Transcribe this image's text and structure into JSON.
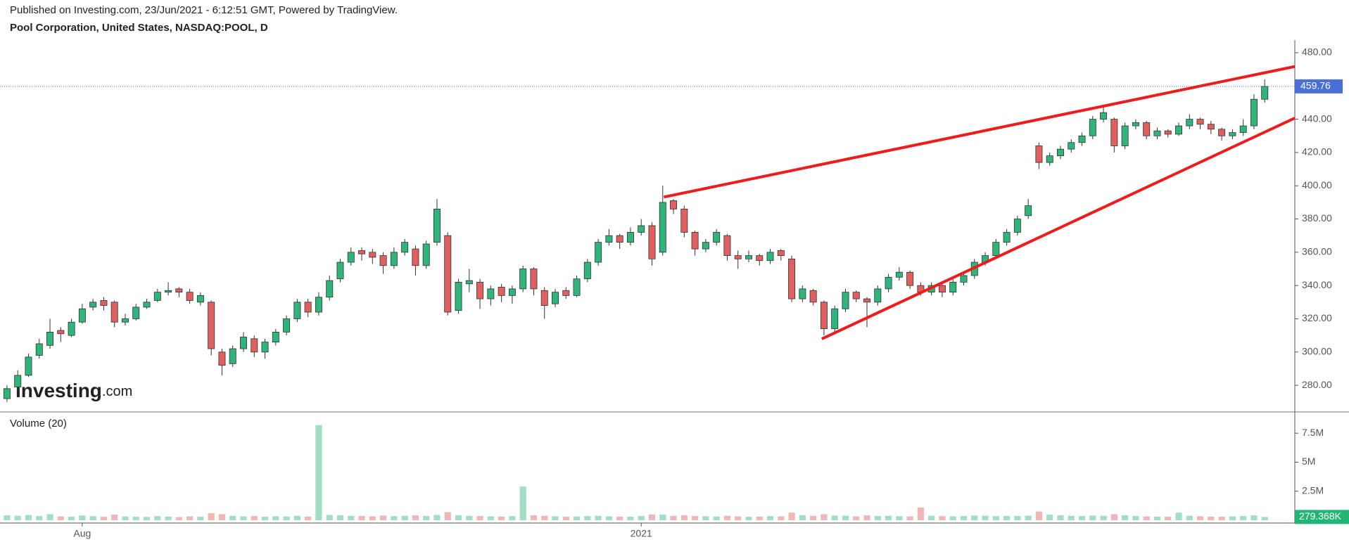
{
  "chart_data": {
    "type": "candlestick",
    "header": "Published on Investing.com, 23/Jun/2021 - 6:12:51 GMT, Powered by TradingView.",
    "title": "Pool Corporation, United States, NASDAQ:POOL, D",
    "volume_title": "Volume (20)",
    "logo": "Investing",
    "logo_suffix": ".com",
    "last_volume_label": "279.368K",
    "xlim": [
      -0.65,
      119.8
    ],
    "xticks": [
      {
        "value": 7,
        "label": "Aug"
      },
      {
        "value": 59,
        "label": "2021"
      }
    ],
    "ylim": [
      264.4,
      487.6
    ],
    "yticks": [
      {
        "value": 280,
        "label": "280.00"
      },
      {
        "value": 300,
        "label": "300.00"
      },
      {
        "value": 320,
        "label": "320.00"
      },
      {
        "value": 340,
        "label": "340.00"
      },
      {
        "value": 360,
        "label": "360.00"
      },
      {
        "value": 380,
        "label": "380.00"
      },
      {
        "value": 400,
        "label": "400.00"
      },
      {
        "value": 420,
        "label": "420.00"
      },
      {
        "value": 440,
        "label": "440.00"
      },
      {
        "value": 460,
        "label": "460.00"
      },
      {
        "value": 480,
        "label": "480.00"
      }
    ],
    "y2lim": [
      0,
      9270000
    ],
    "y2ticks": [
      {
        "value": 2500000,
        "label": "2.5M"
      },
      {
        "value": 5000000,
        "label": "5M"
      },
      {
        "value": 7500000,
        "label": "7.5M"
      }
    ],
    "up_color": "#2fb57a",
    "down_color": "#e06060",
    "trend_color": "#ee1c1c",
    "trend_lines": [
      {
        "x": [
          61.1,
          119.8
        ],
        "y": [
          393.2,
          471.7
        ]
      },
      {
        "x": [
          75.8,
          119.8
        ],
        "y": [
          307.9,
          440.7
        ]
      }
    ],
    "candles": [
      [
        272,
        280,
        270,
        278
      ],
      [
        279,
        289,
        277,
        286
      ],
      [
        286,
        299,
        285,
        297
      ],
      [
        298,
        308,
        296,
        305
      ],
      [
        304,
        320,
        302,
        312
      ],
      [
        313,
        315,
        306,
        311
      ],
      [
        310,
        320,
        309,
        318
      ],
      [
        318,
        329,
        317,
        326
      ],
      [
        327,
        332,
        325,
        330
      ],
      [
        331,
        333,
        325,
        328
      ],
      [
        330,
        331,
        315,
        318
      ],
      [
        318,
        323,
        316,
        320
      ],
      [
        320,
        329,
        319,
        327
      ],
      [
        327,
        332,
        326,
        330
      ],
      [
        331,
        338,
        330,
        336
      ],
      [
        336,
        342,
        334,
        337
      ],
      [
        338,
        339,
        333,
        336
      ],
      [
        336,
        338,
        329,
        331
      ],
      [
        330,
        336,
        328,
        334
      ],
      [
        330,
        331,
        298,
        302
      ],
      [
        300,
        302,
        286,
        292
      ],
      [
        293,
        304,
        291,
        302
      ],
      [
        302,
        312,
        300,
        309
      ],
      [
        308,
        310,
        297,
        300
      ],
      [
        300,
        308,
        296,
        306
      ],
      [
        306,
        314,
        304,
        312
      ],
      [
        312,
        322,
        310,
        320
      ],
      [
        320,
        332,
        318,
        330
      ],
      [
        330,
        332,
        321,
        324
      ],
      [
        324,
        336,
        322,
        333
      ],
      [
        333,
        346,
        331,
        343
      ],
      [
        344,
        356,
        342,
        354
      ],
      [
        354,
        363,
        352,
        360
      ],
      [
        361,
        363,
        355,
        359
      ],
      [
        360,
        362,
        353,
        357
      ],
      [
        358,
        360,
        347,
        352
      ],
      [
        352,
        363,
        350,
        360
      ],
      [
        360,
        368,
        358,
        366
      ],
      [
        362,
        364,
        346,
        352
      ],
      [
        352,
        367,
        350,
        365
      ],
      [
        366,
        392,
        364,
        386
      ],
      [
        370,
        372,
        322,
        324
      ],
      [
        325,
        344,
        323,
        342
      ],
      [
        341,
        350,
        336,
        343
      ],
      [
        342,
        344,
        326,
        332
      ],
      [
        332,
        340,
        328,
        338
      ],
      [
        339,
        341,
        330,
        334
      ],
      [
        334,
        340,
        329,
        338
      ],
      [
        338,
        352,
        336,
        350
      ],
      [
        350,
        351,
        334,
        338
      ],
      [
        337,
        339,
        320,
        328
      ],
      [
        329,
        338,
        327,
        336
      ],
      [
        337,
        339,
        332,
        334
      ],
      [
        334,
        346,
        333,
        344
      ],
      [
        344,
        356,
        342,
        354
      ],
      [
        354,
        368,
        352,
        366
      ],
      [
        366,
        374,
        364,
        370
      ],
      [
        370,
        371,
        362,
        366
      ],
      [
        366,
        375,
        364,
        372
      ],
      [
        372,
        380,
        370,
        376
      ],
      [
        376,
        378,
        352,
        356
      ],
      [
        360,
        400,
        358,
        390
      ],
      [
        391,
        392,
        383,
        386
      ],
      [
        386,
        388,
        369,
        372
      ],
      [
        372,
        373,
        358,
        362
      ],
      [
        362,
        368,
        360,
        366
      ],
      [
        366,
        374,
        364,
        372
      ],
      [
        370,
        371,
        355,
        358
      ],
      [
        358,
        361,
        350,
        356
      ],
      [
        356,
        361,
        354,
        358
      ],
      [
        358,
        359,
        352,
        355
      ],
      [
        355,
        362,
        353,
        360
      ],
      [
        361,
        362,
        355,
        358
      ],
      [
        356,
        358,
        330,
        332
      ],
      [
        332,
        340,
        330,
        338
      ],
      [
        337,
        338,
        328,
        330
      ],
      [
        330,
        331,
        310,
        314
      ],
      [
        314,
        328,
        312,
        326
      ],
      [
        326,
        338,
        324,
        336
      ],
      [
        336,
        337,
        330,
        332
      ],
      [
        332,
        333,
        315,
        330
      ],
      [
        330,
        340,
        328,
        338
      ],
      [
        338,
        347,
        336,
        345
      ],
      [
        345,
        351,
        343,
        348
      ],
      [
        348,
        349,
        338,
        340
      ],
      [
        340,
        342,
        334,
        336
      ],
      [
        336,
        342,
        334,
        340
      ],
      [
        340,
        341,
        333,
        336
      ],
      [
        336,
        344,
        334,
        342
      ],
      [
        342,
        348,
        340,
        346
      ],
      [
        346,
        356,
        344,
        354
      ],
      [
        354,
        360,
        352,
        358
      ],
      [
        358,
        368,
        356,
        366
      ],
      [
        366,
        374,
        364,
        372
      ],
      [
        372,
        382,
        370,
        380
      ],
      [
        382,
        392,
        380,
        388
      ],
      [
        424,
        426,
        410,
        414
      ],
      [
        414,
        420,
        412,
        418
      ],
      [
        418,
        424,
        416,
        422
      ],
      [
        422,
        428,
        420,
        426
      ],
      [
        426,
        432,
        424,
        430
      ],
      [
        430,
        442,
        428,
        440
      ],
      [
        440,
        448,
        438,
        444
      ],
      [
        440,
        441,
        420,
        424
      ],
      [
        424,
        438,
        422,
        436
      ],
      [
        436,
        440,
        434,
        438
      ],
      [
        438,
        439,
        428,
        430
      ],
      [
        430,
        435,
        428,
        433
      ],
      [
        433,
        434,
        429,
        431
      ],
      [
        431,
        438,
        430,
        436
      ],
      [
        436,
        443,
        434,
        440
      ],
      [
        440,
        441,
        434,
        437
      ],
      [
        437,
        439,
        431,
        434
      ],
      [
        434,
        435,
        427,
        430
      ],
      [
        430,
        434,
        428,
        432
      ],
      [
        432,
        440,
        430,
        436
      ],
      [
        436,
        455,
        434,
        452
      ],
      [
        452,
        464,
        450,
        459.76
      ]
    ],
    "volume": [
      420000,
      380000,
      450000,
      360000,
      520000,
      330000,
      300000,
      410000,
      350000,
      290000,
      480000,
      320000,
      300000,
      280000,
      350000,
      310000,
      270000,
      330000,
      300000,
      600000,
      520000,
      380000,
      330000,
      360000,
      300000,
      340000,
      320000,
      380000,
      310000,
      8200000,
      450000,
      420000,
      380000,
      360000,
      330000,
      400000,
      350000,
      380000,
      420000,
      360000,
      450000,
      700000,
      420000,
      380000,
      360000,
      330000,
      310000,
      350000,
      2900000,
      420000,
      380000,
      340000,
      300000,
      320000,
      350000,
      380000,
      330000,
      310000,
      300000,
      360000,
      500000,
      480000,
      380000,
      420000,
      360000,
      340000,
      320000,
      380000,
      330000,
      300000,
      310000,
      350000,
      330000,
      650000,
      420000,
      380000,
      520000,
      400000,
      380000,
      330000,
      420000,
      360000,
      380000,
      340000,
      330000,
      1100000,
      380000,
      350000,
      330000,
      360000,
      400000,
      380000,
      350000,
      370000,
      360000,
      390000,
      750000,
      480000,
      420000,
      380000,
      360000,
      400000,
      380000,
      520000,
      420000,
      360000,
      330000,
      310000,
      300000,
      650000,
      380000,
      340000,
      310000,
      300000,
      330000,
      360000,
      420000,
      279368
    ]
  }
}
